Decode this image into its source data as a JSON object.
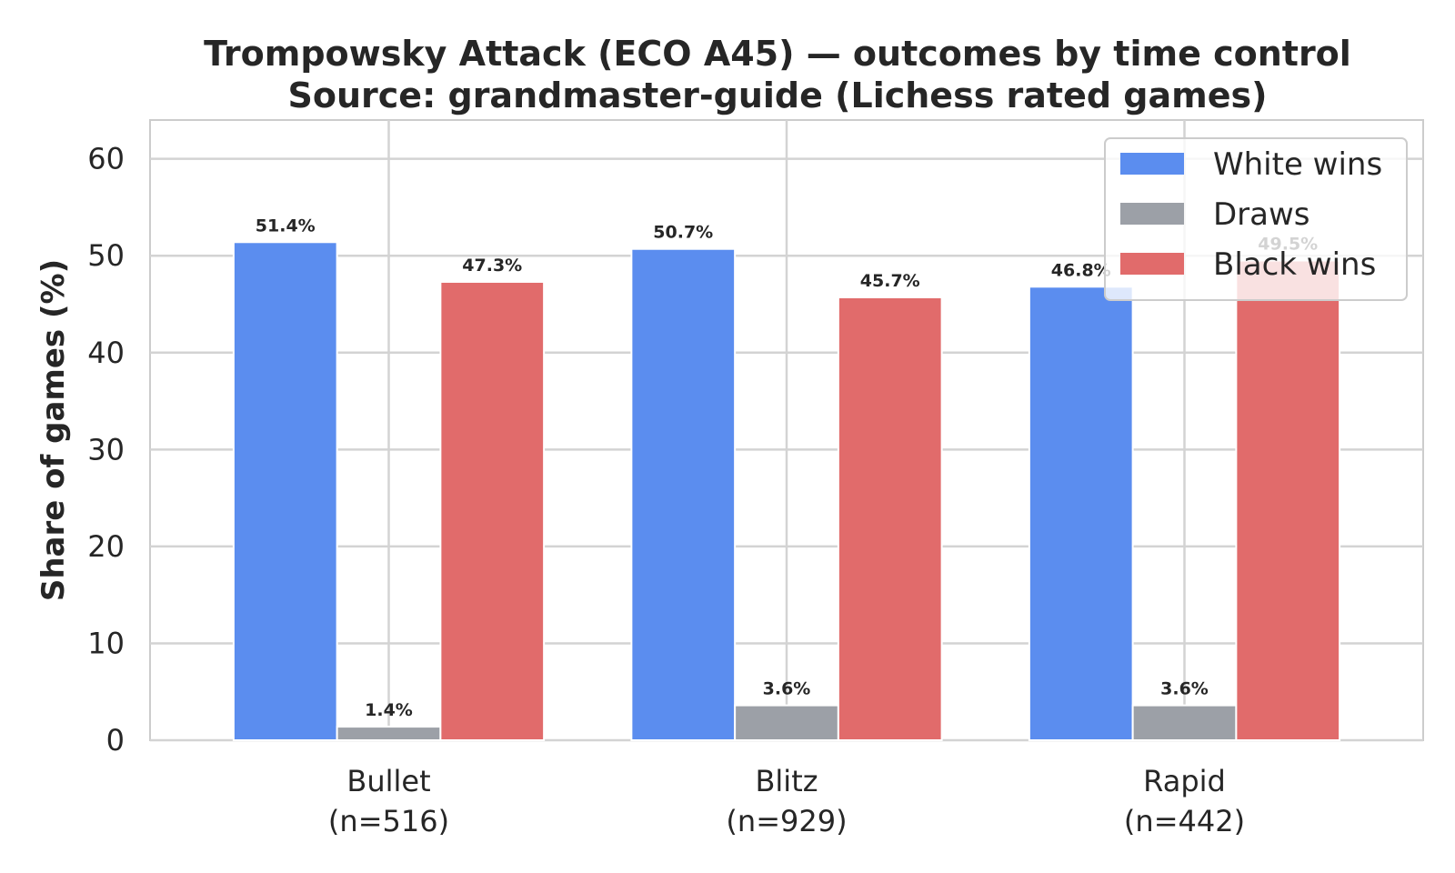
{
  "chart_data": {
    "type": "bar",
    "title": "Trompowsky Attack (ECO A45) — outcomes by time control",
    "subtitle": "Source: grandmaster-guide (Lichess rated games)",
    "xlabel": "",
    "ylabel": "Share of games (%)",
    "ylim": [
      0,
      64
    ],
    "yticks": [
      "0",
      "10",
      "20",
      "30",
      "40",
      "50",
      "60"
    ],
    "categories": [
      {
        "name": "Bullet",
        "n": "(n=516)"
      },
      {
        "name": "Blitz",
        "n": "(n=929)"
      },
      {
        "name": "Rapid",
        "n": "(n=442)"
      }
    ],
    "series": [
      {
        "name": "White wins",
        "color": "#5b8def",
        "values": [
          51.4,
          50.7,
          46.8
        ],
        "labels": [
          "51.4%",
          "50.7%",
          "46.8%"
        ]
      },
      {
        "name": "Draws",
        "color": "#9ca0a7",
        "values": [
          1.4,
          3.6,
          3.6
        ],
        "labels": [
          "1.4%",
          "3.6%",
          "3.6%"
        ]
      },
      {
        "name": "Black wins",
        "color": "#e16b6b",
        "values": [
          47.3,
          45.7,
          49.5
        ],
        "labels": [
          "47.3%",
          "45.7%",
          "49.5%"
        ]
      }
    ],
    "grid": true,
    "legend_position": "upper-right"
  }
}
